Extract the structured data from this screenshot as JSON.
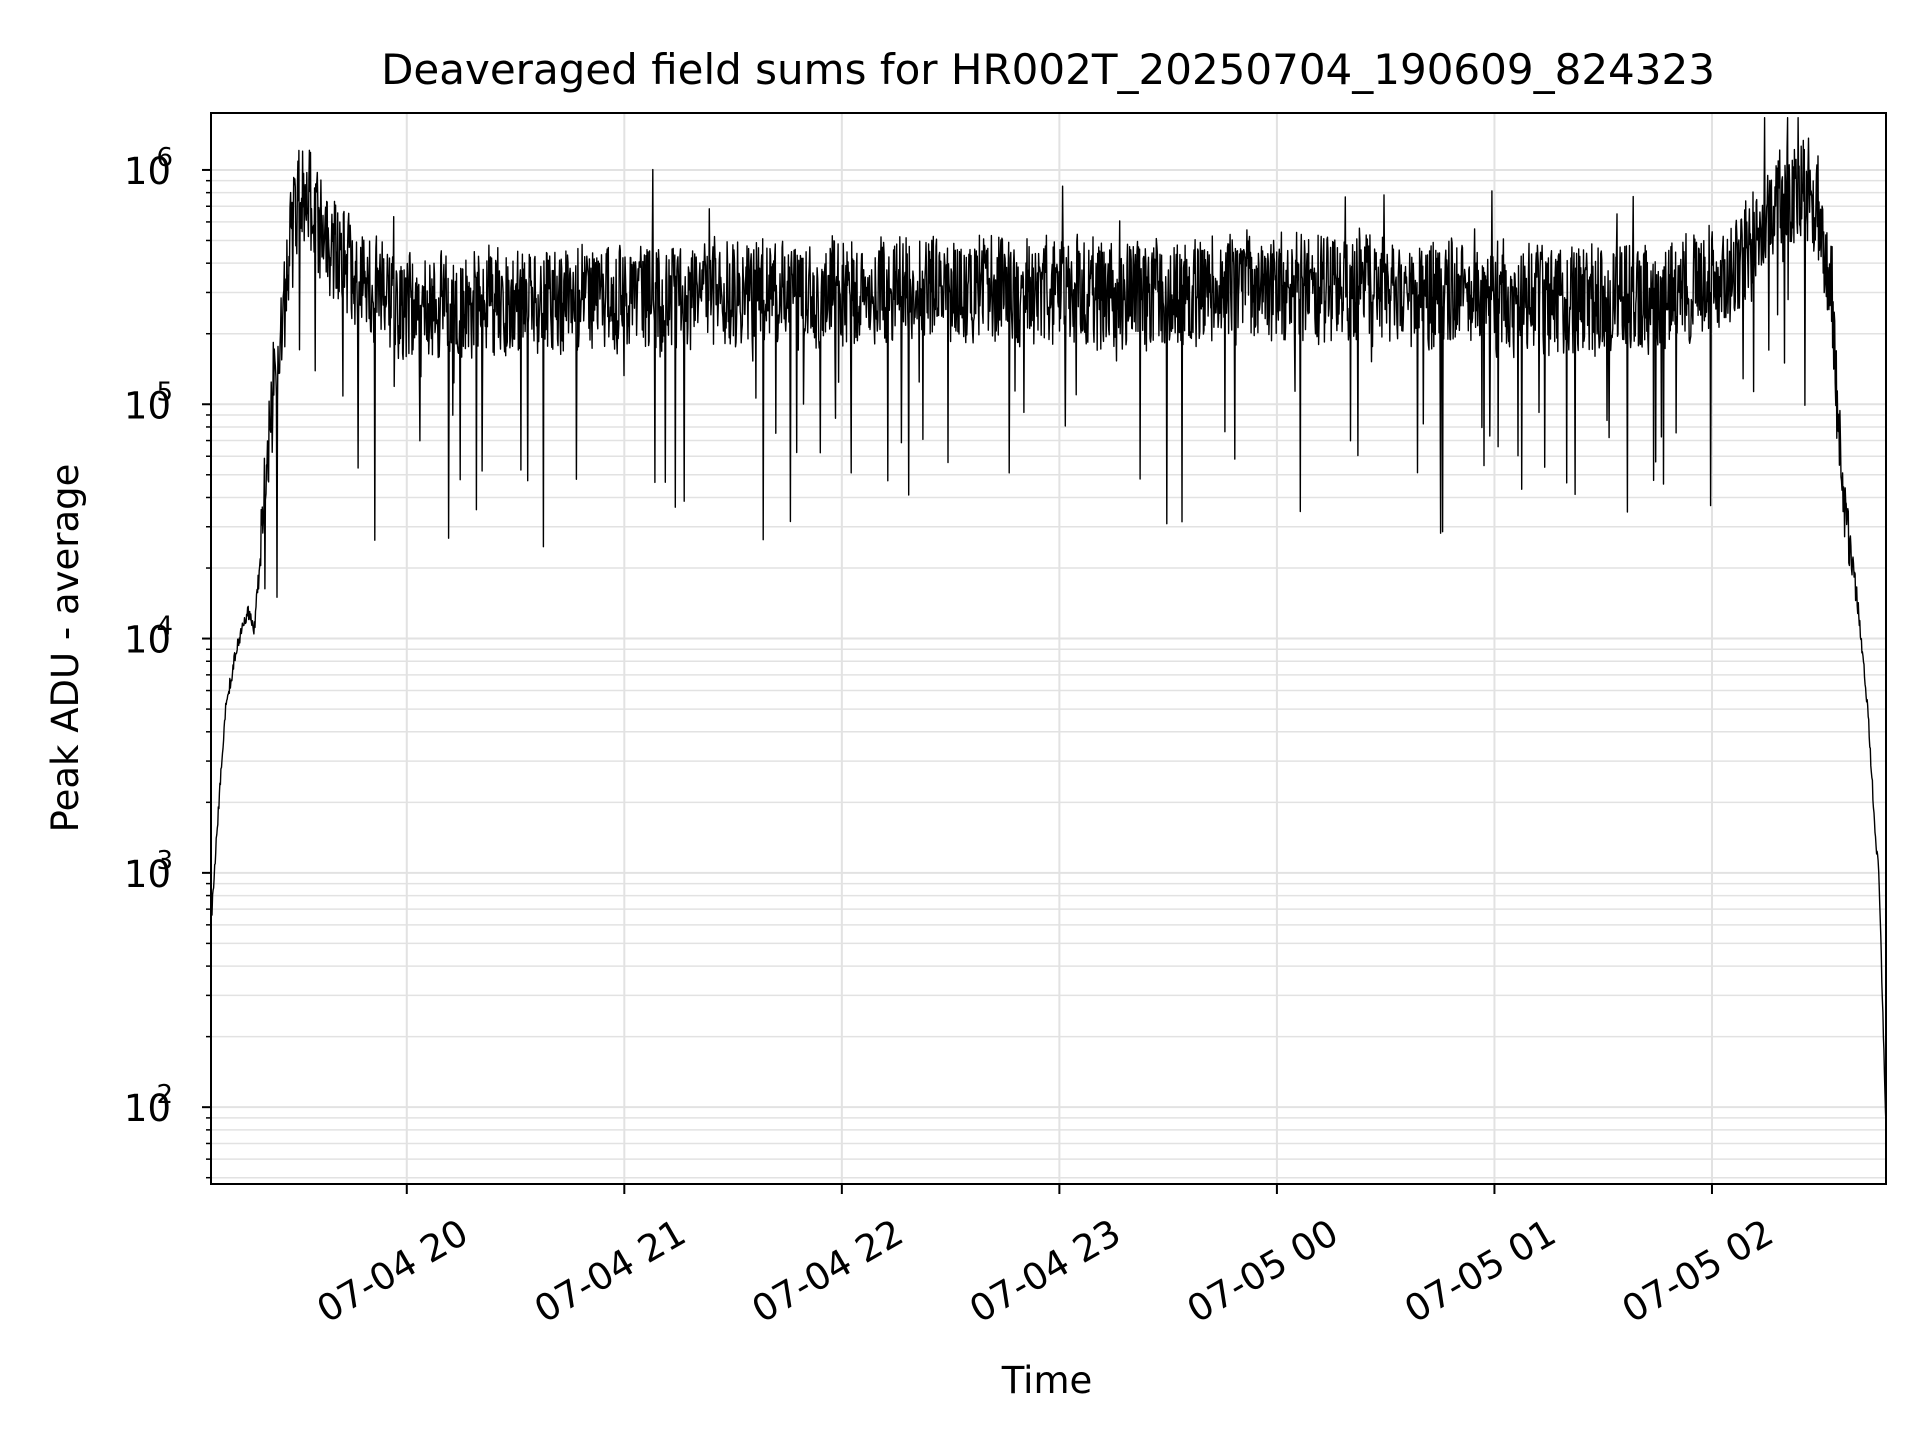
{
  "colors": {
    "background": "#ffffff",
    "series": "#000000",
    "grid": "#e2e2e2",
    "axis": "#000000"
  },
  "chart_data": {
    "type": "line",
    "title": "Deaveraged field sums for HR002T_20250704_190609_824323",
    "xlabel": "Time",
    "ylabel": "Peak ADU - average",
    "xscale": "time",
    "yscale": "log",
    "grid": true,
    "grid_minor_y": true,
    "legend": "none",
    "xlim": [
      "2025-07-04 19:06",
      "2025-07-05 02:48"
    ],
    "ylim": [
      47,
      1750000
    ],
    "x_ticks": [
      {
        "value": "2025-07-04 20:00",
        "label": "07-04 20"
      },
      {
        "value": "2025-07-04 21:00",
        "label": "07-04 21"
      },
      {
        "value": "2025-07-04 22:00",
        "label": "07-04 22"
      },
      {
        "value": "2025-07-04 23:00",
        "label": "07-04 23"
      },
      {
        "value": "2025-07-05 00:00",
        "label": "07-05 00"
      },
      {
        "value": "2025-07-05 01:00",
        "label": "07-05 01"
      },
      {
        "value": "2025-07-05 02:00",
        "label": "07-05 02"
      }
    ],
    "y_ticks": [
      {
        "value": 100,
        "base": "10",
        "exp": "2"
      },
      {
        "value": 1000,
        "base": "10",
        "exp": "3"
      },
      {
        "value": 10000,
        "base": "10",
        "exp": "4"
      },
      {
        "value": 100000,
        "base": "10",
        "exp": "5"
      },
      {
        "value": 1000000,
        "base": "10",
        "exp": "6"
      }
    ],
    "series": [
      {
        "color": "#000000",
        "noise": "high-frequency scatter: typical excursions between ~0.5x and ~2x of the envelope, occasional dips down to ~3e4",
        "envelope": {
          "x": [
            "2025-07-04 19:06",
            "2025-07-04 19:08",
            "2025-07-04 19:10",
            "2025-07-04 19:13",
            "2025-07-04 19:16",
            "2025-07-04 19:18",
            "2025-07-04 19:20",
            "2025-07-04 19:23",
            "2025-07-04 19:26",
            "2025-07-04 19:28",
            "2025-07-04 19:30",
            "2025-07-04 19:33",
            "2025-07-04 19:36",
            "2025-07-04 19:40",
            "2025-07-04 19:45",
            "2025-07-04 19:50",
            "2025-07-04 20:00",
            "2025-07-04 20:30",
            "2025-07-04 21:00",
            "2025-07-04 21:30",
            "2025-07-04 22:00",
            "2025-07-04 22:30",
            "2025-07-04 23:00",
            "2025-07-04 23:30",
            "2025-07-05 00:00",
            "2025-07-05 00:30",
            "2025-07-05 01:00",
            "2025-07-05 01:30",
            "2025-07-05 01:50",
            "2025-07-05 02:05",
            "2025-07-05 02:15",
            "2025-07-05 02:20",
            "2025-07-05 02:23",
            "2025-07-05 02:26",
            "2025-07-05 02:28",
            "2025-07-05 02:30",
            "2025-07-05 02:33",
            "2025-07-05 02:36",
            "2025-07-05 02:40",
            "2025-07-05 02:43",
            "2025-07-05 02:45",
            "2025-07-05 02:46",
            "2025-07-05 02:47",
            "2025-07-05 02:48"
          ],
          "y": [
            600,
            1800,
            5000,
            9000,
            13000,
            11000,
            30000,
            100000,
            250000,
            450000,
            650000,
            700000,
            550000,
            450000,
            350000,
            300000,
            250000,
            260000,
            270000,
            280000,
            290000,
            300000,
            290000,
            280000,
            300000,
            290000,
            270000,
            260000,
            280000,
            350000,
            550000,
            700000,
            750000,
            780000,
            700000,
            600000,
            250000,
            40000,
            15000,
            5000,
            1500,
            1000,
            300,
            80
          ]
        }
      }
    ]
  }
}
